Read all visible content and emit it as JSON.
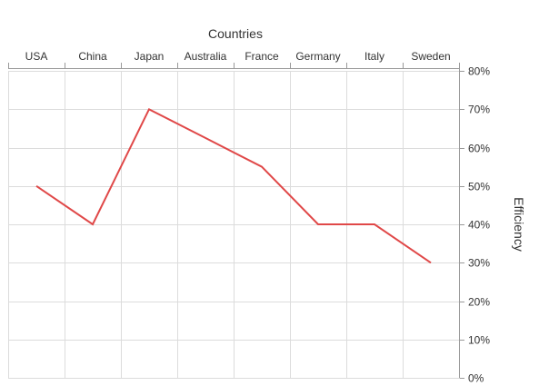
{
  "chart_data": {
    "type": "line",
    "title": "",
    "xlabel": "Countries",
    "ylabel": "Efficiency",
    "categories": [
      "USA",
      "China",
      "Japan",
      "Australia",
      "France",
      "Germany",
      "Italy",
      "Sweden"
    ],
    "series": [
      {
        "values": [
          50,
          40,
          70,
          62.5,
          55,
          40,
          40,
          30
        ],
        "color": "#e04848"
      }
    ],
    "ylim": [
      0,
      80
    ],
    "yticks": [
      0,
      10,
      20,
      30,
      40,
      50,
      60,
      70,
      80
    ],
    "ytick_format": "percent",
    "x_axis_position": "top",
    "y_axis_position": "right",
    "grid": true
  }
}
